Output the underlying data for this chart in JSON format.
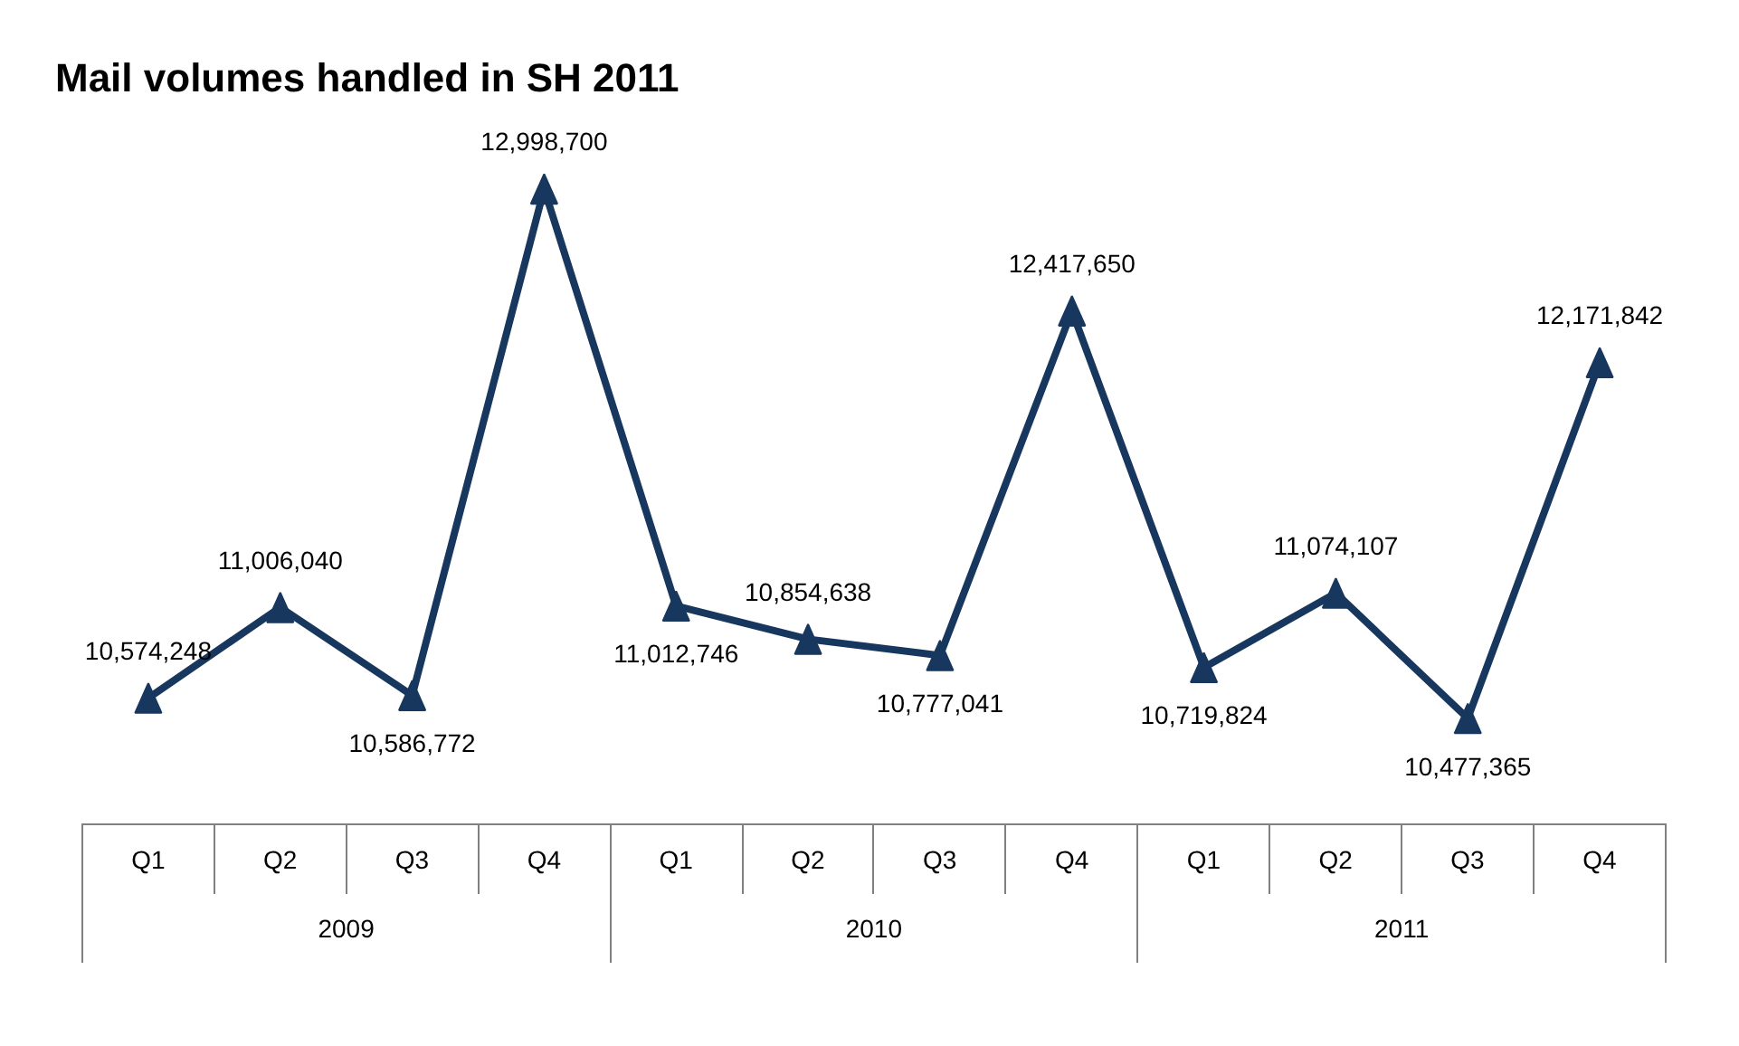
{
  "chart_data": {
    "type": "line",
    "title": "Mail volumes handled in SH 2011",
    "categories": [
      "Q1",
      "Q2",
      "Q3",
      "Q4",
      "Q1",
      "Q2",
      "Q3",
      "Q4",
      "Q1",
      "Q2",
      "Q3",
      "Q4"
    ],
    "annotations": [
      "2009",
      "2010",
      "2011"
    ],
    "series": [
      {
        "color": "#17375e",
        "values": [
          10574248,
          11006040,
          10586772,
          12998700,
          11012746,
          10854638,
          10777041,
          12417650,
          10719824,
          11074107,
          10477365,
          12171842
        ],
        "value_labels": [
          "10,574,248",
          "11,006,040",
          "10,586,772",
          "12,998,700",
          "11,012,746",
          "10,854,638",
          "10,777,041",
          "12,417,650",
          "10,719,824",
          "11,074,107",
          "10,477,365",
          "12,171,842"
        ]
      }
    ],
    "marker": "triangle",
    "line_style": "solid"
  }
}
